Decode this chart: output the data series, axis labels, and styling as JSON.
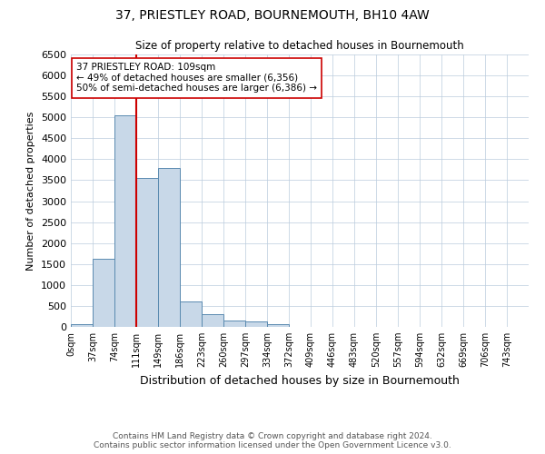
{
  "title": "37, PRIESTLEY ROAD, BOURNEMOUTH, BH10 4AW",
  "subtitle": "Size of property relative to detached houses in Bournemouth",
  "xlabel": "Distribution of detached houses by size in Bournemouth",
  "ylabel": "Number of detached properties",
  "footer_line1": "Contains HM Land Registry data © Crown copyright and database right 2024.",
  "footer_line2": "Contains public sector information licensed under the Open Government Licence v3.0.",
  "bin_labels": [
    "0sqm",
    "37sqm",
    "74sqm",
    "111sqm",
    "149sqm",
    "186sqm",
    "223sqm",
    "260sqm",
    "297sqm",
    "334sqm",
    "372sqm",
    "409sqm",
    "446sqm",
    "483sqm",
    "520sqm",
    "557sqm",
    "594sqm",
    "632sqm",
    "669sqm",
    "706sqm",
    "743sqm"
  ],
  "bar_values": [
    75,
    1625,
    5050,
    3550,
    3800,
    600,
    300,
    155,
    130,
    65,
    0,
    0,
    0,
    0,
    0,
    0,
    0,
    0,
    0,
    0,
    0
  ],
  "bar_color": "#c8d8e8",
  "bar_edge_color": "#5a8ab0",
  "vline_x": 3.0,
  "vline_color": "#cc0000",
  "annotation_text": "37 PRIESTLEY ROAD: 109sqm\n← 49% of detached houses are smaller (6,356)\n50% of semi-detached houses are larger (6,386) →",
  "annotation_box_color": "#ffffff",
  "annotation_box_edge": "#cc0000",
  "ylim": [
    0,
    6500
  ],
  "ytick_step": 500,
  "background_color": "#ffffff",
  "grid_color": "#bbccdd"
}
